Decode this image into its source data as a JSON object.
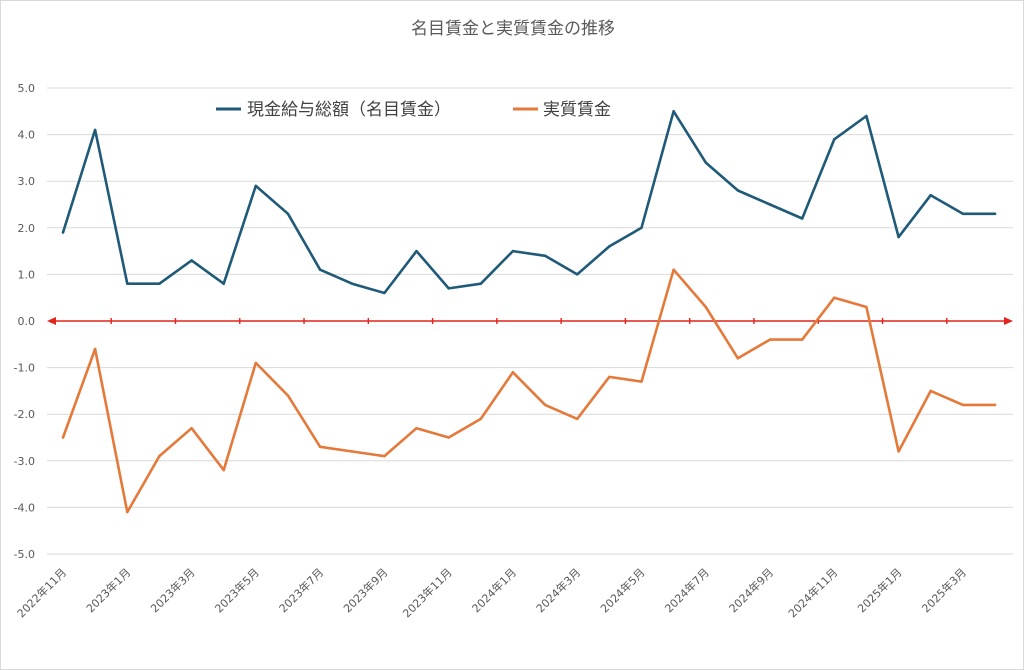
{
  "chart_data": {
    "type": "line",
    "title": "名目賃金と実質賃金の推移",
    "xlabel": "",
    "ylabel": "",
    "ylim": [
      -5.0,
      5.0
    ],
    "y_ticks": [
      "5.0",
      "4.0",
      "3.0",
      "2.0",
      "1.0",
      "0.0",
      "-1.0",
      "-2.0",
      "-3.0",
      "-4.0",
      "-5.0"
    ],
    "x": [
      "2022年11月",
      "2022年12月",
      "2023年1月",
      "2023年2月",
      "2023年3月",
      "2023年4月",
      "2023年5月",
      "2023年6月",
      "2023年7月",
      "2023年8月",
      "2023年9月",
      "2023年10月",
      "2023年11月",
      "2023年12月",
      "2024年1月",
      "2024年2月",
      "2024年3月",
      "2024年4月",
      "2024年5月",
      "2024年6月",
      "2024年7月",
      "2024年8月",
      "2024年9月",
      "2024年10月",
      "2024年11月",
      "2024年12月",
      "2025年1月",
      "2025年2月",
      "2025年3月",
      "2025年4月"
    ],
    "x_tick_labels": [
      "2022年11月",
      "2023年1月",
      "2023年3月",
      "2023年5月",
      "2023年7月",
      "2023年9月",
      "2023年11月",
      "2024年1月",
      "2024年3月",
      "2024年5月",
      "2024年7月",
      "2024年9月",
      "2024年11月",
      "2025年1月",
      "2025年3月"
    ],
    "grid": true,
    "legend_position": "top",
    "zero_line_color": "#e3241b",
    "series": [
      {
        "name": "現金給与総額（名目賃金）",
        "color": "#1f5a78",
        "values": [
          1.9,
          4.1,
          0.8,
          0.8,
          1.3,
          0.8,
          2.9,
          2.3,
          1.1,
          0.8,
          0.6,
          1.5,
          0.7,
          0.8,
          1.5,
          1.4,
          1.0,
          1.6,
          2.0,
          4.5,
          3.4,
          2.8,
          2.5,
          2.2,
          3.9,
          4.4,
          1.8,
          2.7,
          2.3,
          2.3
        ]
      },
      {
        "name": "実質賃金",
        "color": "#e5793a",
        "values": [
          -2.5,
          -0.6,
          -4.1,
          -2.9,
          -2.3,
          -3.2,
          -0.9,
          -1.6,
          -2.7,
          -2.8,
          -2.9,
          -2.3,
          -2.5,
          -2.1,
          -1.1,
          -1.8,
          -2.1,
          -1.2,
          -1.3,
          1.1,
          0.3,
          -0.8,
          -0.4,
          -0.4,
          0.5,
          0.3,
          -2.8,
          -1.5,
          -1.8,
          -1.8
        ]
      }
    ]
  }
}
